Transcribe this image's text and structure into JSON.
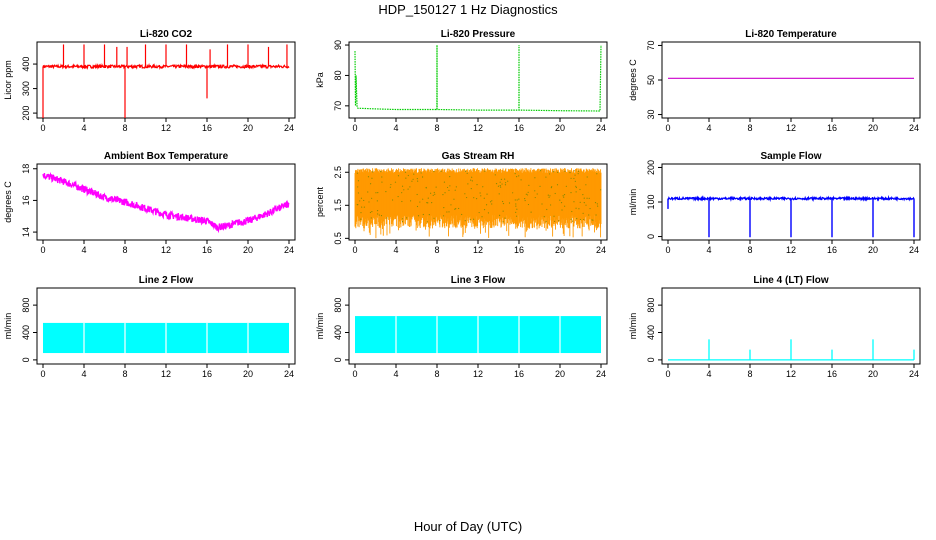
{
  "figure": {
    "title": "HDP_150127  1 Hz Diagnostics",
    "xlabel": "Hour of Day (UTC)"
  },
  "chart_data": [
    {
      "type": "line",
      "title": "Li-820 CO2",
      "ylabel": "Licor ppm",
      "color": "#ff0000",
      "xlim": [
        0,
        24
      ],
      "ylim": [
        180,
        490
      ],
      "xticks": [
        0,
        4,
        8,
        12,
        16,
        20,
        24
      ],
      "yticks": [
        200,
        300,
        400
      ],
      "baseline": 390,
      "noise": 12,
      "spikes": [
        [
          0,
          180
        ],
        [
          2,
          480
        ],
        [
          4,
          480
        ],
        [
          6,
          480
        ],
        [
          7.2,
          470
        ],
        [
          8,
          180
        ],
        [
          8.2,
          470
        ],
        [
          10,
          480
        ],
        [
          12,
          480
        ],
        [
          14,
          480
        ],
        [
          16,
          260
        ],
        [
          16.3,
          460
        ],
        [
          18,
          480
        ],
        [
          20,
          480
        ],
        [
          22,
          470
        ],
        [
          23.8,
          480
        ]
      ]
    },
    {
      "type": "line",
      "title": "Li-820 Pressure",
      "ylabel": "kPa",
      "color": "#00cc00",
      "xlim": [
        0,
        24
      ],
      "ylim": [
        66,
        91
      ],
      "xticks": [
        0,
        4,
        8,
        12,
        16,
        20,
        24
      ],
      "yticks": [
        70,
        80,
        90
      ],
      "series": {
        "x": [
          0,
          0.05,
          0.1,
          0.2,
          0.3,
          0.5,
          2,
          4,
          6,
          7.99,
          8,
          8.01,
          12,
          15.99,
          16,
          16.01,
          20,
          23.9,
          24
        ],
        "y": [
          88,
          70,
          80,
          69.5,
          69.2,
          69.2,
          69,
          68.8,
          68.8,
          68.8,
          90,
          68.8,
          68.6,
          68.6,
          90,
          68.6,
          68.4,
          68.3,
          90
        ]
      }
    },
    {
      "type": "line",
      "title": "Li-820 Temperature",
      "ylabel": "degrees C",
      "color": "#cc00cc",
      "xlim": [
        0,
        24
      ],
      "ylim": [
        28,
        72
      ],
      "xticks": [
        0,
        4,
        8,
        12,
        16,
        20,
        24
      ],
      "yticks": [
        30,
        50,
        70
      ],
      "series": {
        "x": [
          0,
          24
        ],
        "y": [
          51,
          51
        ]
      }
    },
    {
      "type": "line",
      "title": "Ambient Box Temperature",
      "ylabel": "degrees C",
      "color": "#ff00ff",
      "xlim": [
        0,
        24
      ],
      "ylim": [
        13.5,
        18.3
      ],
      "xticks": [
        0,
        4,
        8,
        12,
        16,
        20,
        24
      ],
      "yticks": [
        14,
        16,
        18
      ],
      "series": {
        "x": [
          0,
          2,
          4,
          6,
          8,
          10,
          12,
          14,
          16,
          17,
          18,
          19,
          20,
          22,
          24
        ],
        "y": [
          17.6,
          17.2,
          16.7,
          16.2,
          15.9,
          15.5,
          15.1,
          14.9,
          14.7,
          14.3,
          14.4,
          14.6,
          14.7,
          15.2,
          15.8
        ]
      },
      "band": 0.45
    },
    {
      "type": "line",
      "title": "Gas Stream RH",
      "ylabel": "percent",
      "color": "#ff9900",
      "xlim": [
        0,
        24
      ],
      "ylim": [
        0.45,
        2.75
      ],
      "xticks": [
        0,
        4,
        8,
        12,
        16,
        20,
        24
      ],
      "yticks": [
        0.5,
        1.5,
        2.5
      ],
      "upper": 2.55,
      "lower": 1.0,
      "min": 0.5,
      "markers": "#888800"
    },
    {
      "type": "line",
      "title": "Sample Flow",
      "ylabel": "ml/min",
      "color": "#0000ff",
      "xlim": [
        0,
        24
      ],
      "ylim": [
        -10,
        210
      ],
      "xticks": [
        0,
        4,
        8,
        12,
        16,
        20,
        24
      ],
      "yticks": [
        0,
        100,
        200
      ],
      "baseline": 110,
      "dips": [
        4,
        8,
        12,
        16,
        20,
        24
      ]
    },
    {
      "type": "line",
      "title": "Line 2 Flow",
      "ylabel": "ml/min",
      "color": "#00ffff",
      "xlim": [
        0,
        24
      ],
      "ylim": [
        -60,
        1050
      ],
      "xticks": [
        0,
        4,
        8,
        12,
        16,
        20,
        24
      ],
      "yticks": [
        0,
        400,
        800
      ],
      "band": [
        100,
        540
      ],
      "gaps": [
        4,
        8,
        12,
        16,
        20
      ]
    },
    {
      "type": "line",
      "title": "Line 3 Flow",
      "ylabel": "ml/min",
      "color": "#00ffff",
      "xlim": [
        0,
        24
      ],
      "ylim": [
        -60,
        1050
      ],
      "xticks": [
        0,
        4,
        8,
        12,
        16,
        20,
        24
      ],
      "yticks": [
        0,
        400,
        800
      ],
      "band": [
        100,
        640
      ],
      "gaps": [
        4,
        8,
        12,
        16,
        20
      ]
    },
    {
      "type": "line",
      "title": "Line 4 (LT) Flow",
      "ylabel": "ml/min",
      "color": "#00ffff",
      "xlim": [
        0,
        24
      ],
      "ylim": [
        -60,
        1050
      ],
      "xticks": [
        0,
        4,
        8,
        12,
        16,
        20,
        24
      ],
      "yticks": [
        0,
        400,
        800
      ],
      "baseline": 0,
      "spikes": [
        [
          4,
          300
        ],
        [
          8,
          150
        ],
        [
          12,
          300
        ],
        [
          16,
          150
        ],
        [
          20,
          300
        ],
        [
          24,
          150
        ]
      ]
    }
  ]
}
